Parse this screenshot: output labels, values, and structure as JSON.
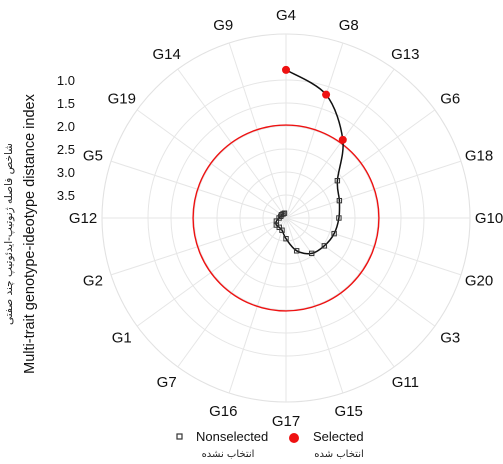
{
  "chart_data": {
    "type": "radar",
    "ylabel": "Multi-trait genotype-ideotype distance index",
    "ylabel_fa": "شاخص فاصله ژنوتیپ-ایدئوتیپ چند صفتی",
    "radial_axis": {
      "ticks": [
        "1.0",
        "1.5",
        "2.0",
        "2.5",
        "3.0",
        "3.5"
      ],
      "tick_values": [
        1.0,
        1.5,
        2.0,
        2.5,
        3.0,
        3.5
      ],
      "range": [
        4.0,
        0.0
      ],
      "reversed": true
    },
    "genotypes": [
      "G4",
      "G8",
      "G13",
      "G6",
      "G18",
      "G10",
      "G20",
      "G3",
      "G11",
      "G15",
      "G17",
      "G16",
      "G7",
      "G1",
      "G2",
      "G12",
      "G5",
      "G19",
      "G14",
      "G9"
    ],
    "series": [
      {
        "name": "Selected",
        "name_fa": "انتخاب شده",
        "color": "#ee1111",
        "genotypes": [
          "G4",
          "G8",
          "G13"
        ],
        "values": [
          0.78,
          1.18,
          1.9
        ]
      },
      {
        "name": "Nonselected",
        "name_fa": "انتخاب نشده",
        "color": "#333333",
        "genotypes": [
          "G6",
          "G18",
          "G10",
          "G20",
          "G3",
          "G11",
          "G15",
          "G17",
          "G16",
          "G7",
          "G1",
          "G2",
          "G12",
          "G5",
          "G19",
          "G14",
          "G9"
        ],
        "values": [
          2.62,
          2.78,
          2.85,
          2.9,
          2.97,
          3.05,
          3.25,
          3.55,
          3.72,
          3.75,
          3.74,
          3.78,
          3.85,
          3.88,
          3.88,
          3.89,
          3.89
        ]
      }
    ],
    "selection_threshold": 1.98,
    "threshold_color": "#ee1111",
    "grid": true
  }
}
